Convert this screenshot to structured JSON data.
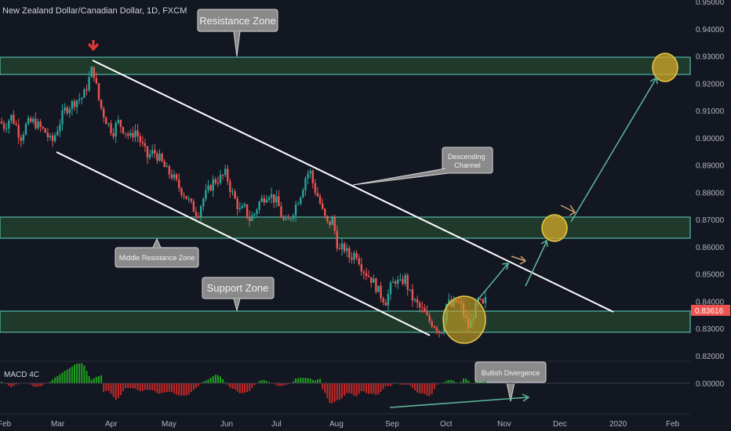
{
  "header": {
    "title": "New Zealand Dollar/Canadian Dollar, 1D, FXCM"
  },
  "colors": {
    "background": "#131722",
    "up": "#26a69a",
    "down": "#ef5350",
    "zone_fill": "#1f3a2a",
    "zone_line": "#5fd3c3",
    "channel": "#ffffff",
    "highlight": "#d4a017",
    "arrow": "#5fb89a",
    "macd_pos": "#1fa31f",
    "macd_neg": "#c62828",
    "price_tag": "#ef5350"
  },
  "annotations": {
    "resistance": "Resistance Zone",
    "middle": "Middle Resistance Zone",
    "support": "Support Zone",
    "channel": "Descending\nChannel",
    "divergence": "Bullish Divergence"
  },
  "indicator": {
    "name": "MACD 4C",
    "zero_label": "0.00000"
  },
  "price_tag": "0.83616",
  "chart_data": [
    {
      "type": "candlestick",
      "title": "New Zealand Dollar/Canadian Dollar, 1D, FXCM",
      "ylim": [
        0.815,
        0.955
      ],
      "y_ticks": [
        "0.95000",
        "0.94000",
        "0.93000",
        "0.92000",
        "0.91000",
        "0.90000",
        "0.89000",
        "0.88000",
        "0.87000",
        "0.86000",
        "0.85000",
        "0.84000",
        "0.83000",
        "0.82000"
      ],
      "x_ticks": [
        "Feb",
        "Mar",
        "Apr",
        "May",
        "Jun",
        "Jul",
        "Aug",
        "Sep",
        "Oct",
        "Nov",
        "Dec",
        "2020",
        "Feb"
      ],
      "path": [
        [
          0,
          0.906
        ],
        [
          6,
          0.904
        ],
        [
          14,
          0.908
        ],
        [
          20,
          0.905
        ],
        [
          26,
          0.9
        ],
        [
          34,
          0.905
        ],
        [
          42,
          0.906
        ],
        [
          50,
          0.904
        ],
        [
          58,
          0.902
        ],
        [
          66,
          0.898
        ],
        [
          74,
          0.904
        ],
        [
          82,
          0.91
        ],
        [
          90,
          0.912
        ],
        [
          98,
          0.914
        ],
        [
          106,
          0.915
        ],
        [
          112,
          0.92
        ],
        [
          118,
          0.926
        ],
        [
          121,
          0.922
        ],
        [
          125,
          0.915
        ],
        [
          130,
          0.91
        ],
        [
          136,
          0.906
        ],
        [
          144,
          0.902
        ],
        [
          150,
          0.906
        ],
        [
          158,
          0.903
        ],
        [
          166,
          0.9
        ],
        [
          172,
          0.903
        ],
        [
          180,
          0.898
        ],
        [
          188,
          0.893
        ],
        [
          196,
          0.895
        ],
        [
          204,
          0.892
        ],
        [
          212,
          0.888
        ],
        [
          220,
          0.886
        ],
        [
          228,
          0.882
        ],
        [
          236,
          0.879
        ],
        [
          244,
          0.875
        ],
        [
          252,
          0.872
        ],
        [
          258,
          0.877
        ],
        [
          264,
          0.88
        ],
        [
          272,
          0.884
        ],
        [
          280,
          0.885
        ],
        [
          288,
          0.887
        ],
        [
          294,
          0.881
        ],
        [
          300,
          0.877
        ],
        [
          306,
          0.873
        ],
        [
          312,
          0.874
        ],
        [
          318,
          0.87
        ],
        [
          324,
          0.872
        ],
        [
          330,
          0.876
        ],
        [
          336,
          0.878
        ],
        [
          342,
          0.88
        ],
        [
          348,
          0.878
        ],
        [
          354,
          0.876
        ],
        [
          360,
          0.87
        ],
        [
          366,
          0.868
        ],
        [
          372,
          0.872
        ],
        [
          378,
          0.876
        ],
        [
          384,
          0.88
        ],
        [
          390,
          0.886
        ],
        [
          395,
          0.888
        ],
        [
          400,
          0.882
        ],
        [
          406,
          0.878
        ],
        [
          412,
          0.872
        ],
        [
          418,
          0.868
        ],
        [
          424,
          0.87
        ],
        [
          428,
          0.864
        ],
        [
          432,
          0.858
        ],
        [
          438,
          0.86
        ],
        [
          446,
          0.856
        ],
        [
          454,
          0.858
        ],
        [
          462,
          0.852
        ],
        [
          468,
          0.85
        ],
        [
          474,
          0.848
        ],
        [
          480,
          0.845
        ],
        [
          486,
          0.842
        ],
        [
          492,
          0.84
        ],
        [
          498,
          0.845
        ],
        [
          504,
          0.848
        ],
        [
          510,
          0.846
        ],
        [
          516,
          0.849
        ],
        [
          522,
          0.843
        ],
        [
          528,
          0.84
        ],
        [
          534,
          0.838
        ],
        [
          540,
          0.836
        ],
        [
          546,
          0.833
        ],
        [
          552,
          0.832
        ],
        [
          558,
          0.83
        ],
        [
          562,
          0.828
        ],
        [
          566,
          0.834
        ],
        [
          570,
          0.84
        ],
        [
          576,
          0.838
        ],
        [
          582,
          0.84
        ],
        [
          588,
          0.838
        ],
        [
          594,
          0.833
        ],
        [
          598,
          0.83
        ],
        [
          604,
          0.836
        ],
        [
          610,
          0.84
        ],
        [
          616,
          0.838
        ],
        [
          620,
          0.841
        ]
      ],
      "zones": [
        {
          "name": "Resistance Zone",
          "low": 0.923,
          "high": 0.93
        },
        {
          "name": "Middle Resistance Zone",
          "low": 0.863,
          "high": 0.871
        },
        {
          "name": "Support Zone",
          "low": 0.829,
          "high": 0.837
        }
      ]
    },
    {
      "type": "bar",
      "title": "MACD 4C",
      "y_ticks": [
        "0.00000"
      ]
    }
  ]
}
